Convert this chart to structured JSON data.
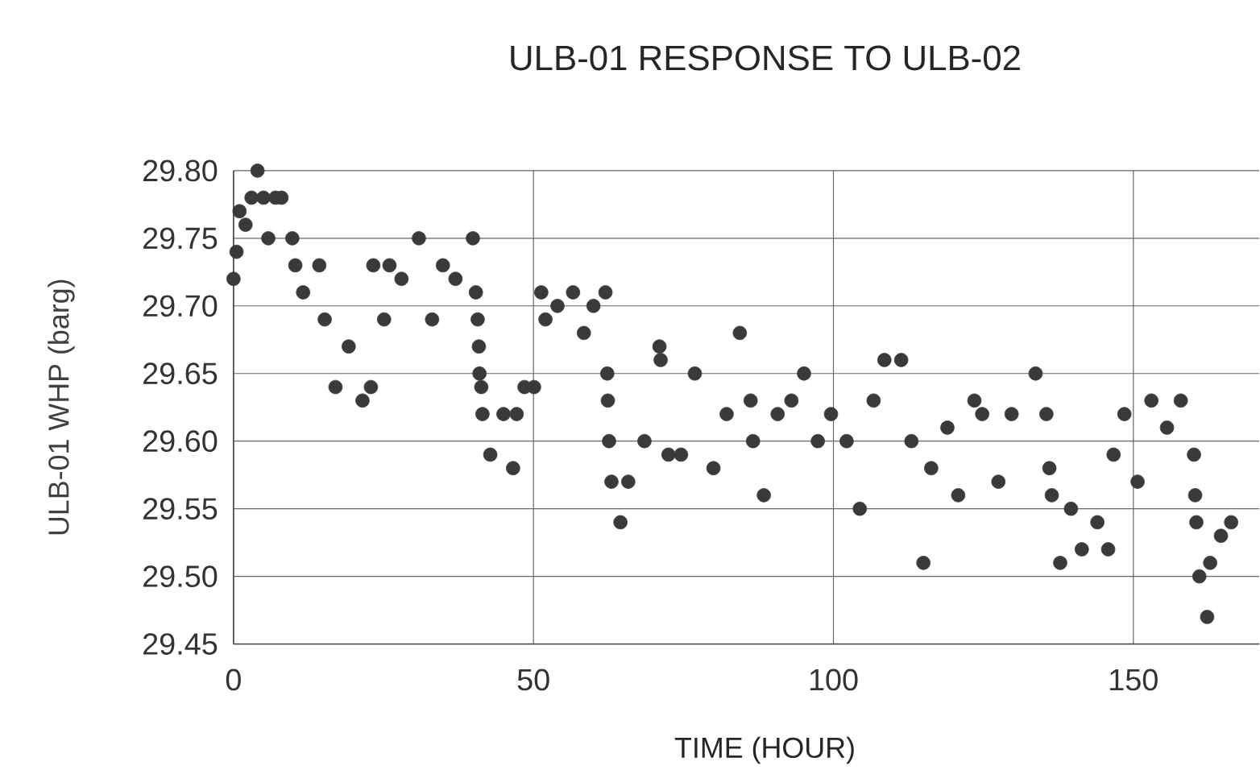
{
  "chart_data": {
    "type": "scatter",
    "title": "ULB-01 RESPONSE TO ULB-02",
    "xlabel": "TIME (HOUR)",
    "ylabel": "ULB-01 WHP (barg)",
    "xlim": [
      0,
      171
    ],
    "ylim": [
      29.45,
      29.8
    ],
    "xticks": [
      0,
      50,
      100,
      150
    ],
    "yticks": [
      {
        "value": 29.45,
        "label": "29.45"
      },
      {
        "value": 29.5,
        "label": "29.50"
      },
      {
        "value": 29.55,
        "label": "29.55"
      },
      {
        "value": 29.6,
        "label": "29.60"
      },
      {
        "value": 29.65,
        "label": "29.65"
      },
      {
        "value": 29.7,
        "label": "29.70"
      },
      {
        "value": 29.75,
        "label": "29.75"
      },
      {
        "value": 29.8,
        "label": "29.80"
      }
    ],
    "grid": true,
    "marker": "circle",
    "series": [
      {
        "color": "#3a3a3a",
        "x": [
          0,
          0.5,
          1,
          2,
          3,
          4,
          5,
          5.8,
          7,
          8,
          9.8,
          10.3,
          11.6,
          14.3,
          15.2,
          17,
          19.2,
          21.5,
          22.9,
          23.3,
          25.1,
          26,
          28,
          30.9,
          33.1,
          34.9,
          37,
          39.9,
          40.4,
          40.7,
          40.9,
          41,
          41.3,
          41.5,
          42.8,
          45,
          46.6,
          47.2,
          48.5,
          50.1,
          51.3,
          52,
          54,
          56.6,
          58.4,
          60,
          62,
          62.3,
          62.4,
          62.6,
          63,
          64.5,
          65.8,
          68.5,
          71,
          71.2,
          72.5,
          74.6,
          76.9,
          80,
          82.2,
          84.4,
          86.2,
          86.6,
          88.4,
          90.7,
          93,
          95.1,
          97.4,
          99.6,
          102.2,
          104.4,
          106.7,
          108.5,
          111.3,
          113,
          115,
          116.3,
          119,
          120.8,
          123.5,
          124.8,
          127.5,
          129.7,
          133.7,
          135.5,
          136,
          136.4,
          137.8,
          139.6,
          141.4,
          144,
          145.8,
          146.7,
          148.5,
          150.7,
          153,
          155.6,
          157.9,
          160.1,
          160.3,
          160.5,
          161,
          162.3,
          162.8,
          164.6,
          166.3
        ],
        "values": [
          29.72,
          29.74,
          29.77,
          29.76,
          29.78,
          29.8,
          29.78,
          29.75,
          29.78,
          29.78,
          29.75,
          29.73,
          29.71,
          29.73,
          29.69,
          29.64,
          29.67,
          29.63,
          29.64,
          29.73,
          29.69,
          29.73,
          29.72,
          29.75,
          29.69,
          29.73,
          29.72,
          29.75,
          29.71,
          29.69,
          29.67,
          29.65,
          29.64,
          29.62,
          29.59,
          29.62,
          29.58,
          29.62,
          29.64,
          29.64,
          29.71,
          29.69,
          29.7,
          29.71,
          29.68,
          29.7,
          29.71,
          29.65,
          29.63,
          29.6,
          29.57,
          29.54,
          29.57,
          29.6,
          29.67,
          29.66,
          29.59,
          29.59,
          29.65,
          29.58,
          29.62,
          29.68,
          29.63,
          29.6,
          29.56,
          29.62,
          29.63,
          29.65,
          29.6,
          29.62,
          29.6,
          29.55,
          29.63,
          29.66,
          29.66,
          29.6,
          29.51,
          29.58,
          29.61,
          29.56,
          29.63,
          29.62,
          29.57,
          29.62,
          29.65,
          29.62,
          29.58,
          29.56,
          29.51,
          29.55,
          29.52,
          29.54,
          29.52,
          29.59,
          29.62,
          29.57,
          29.63,
          29.61,
          29.63,
          29.59,
          29.56,
          29.54,
          29.5,
          29.47,
          29.51,
          29.53,
          29.54
        ]
      }
    ]
  }
}
